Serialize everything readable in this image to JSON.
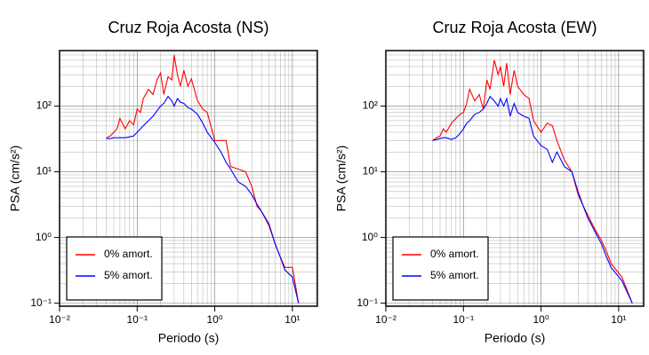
{
  "chart_data": [
    {
      "type": "line",
      "title": "Cruz Roja Acosta (NS)",
      "x_label": "Periodo (s)",
      "y_label": "PSA (cm/s²)",
      "x_scale": "log",
      "y_scale": "log",
      "grid": true,
      "minor_grid": true,
      "legend": "lower-left",
      "xlim": [
        0.01,
        21
      ],
      "ylim": [
        0.09,
        700
      ],
      "xticks": [
        {
          "value": 0.01,
          "label": "10⁻²"
        },
        {
          "value": 0.1,
          "label": "10⁻¹"
        },
        {
          "value": 1,
          "label": "10⁰"
        },
        {
          "value": 10,
          "label": "10¹"
        }
      ],
      "yticks": [
        {
          "value": 0.1,
          "label": "10⁻¹"
        },
        {
          "value": 1,
          "label": "10⁰"
        },
        {
          "value": 10,
          "label": "10¹"
        },
        {
          "value": 100,
          "label": "10²"
        }
      ],
      "x": [
        0.04,
        0.045,
        0.05,
        0.055,
        0.06,
        0.07,
        0.08,
        0.09,
        0.1,
        0.11,
        0.12,
        0.14,
        0.16,
        0.18,
        0.2,
        0.22,
        0.25,
        0.28,
        0.3,
        0.33,
        0.36,
        0.4,
        0.45,
        0.5,
        0.6,
        0.7,
        0.8,
        1,
        1.2,
        1.4,
        1.6,
        2,
        2.5,
        3,
        3.5,
        4,
        5,
        6,
        7,
        8,
        10,
        12
      ],
      "series": [
        {
          "name": "0% amort.",
          "color": "#ff0000",
          "values": [
            33,
            35,
            40,
            45,
            65,
            45,
            60,
            52,
            90,
            80,
            130,
            180,
            150,
            250,
            320,
            150,
            280,
            250,
            600,
            300,
            200,
            350,
            200,
            260,
            120,
            90,
            80,
            30,
            30,
            30,
            12,
            11,
            10,
            6,
            3,
            2.5,
            1.5,
            0.8,
            0.5,
            0.35,
            0.35,
            0.1
          ]
        },
        {
          "name": "5% amort.",
          "color": "#0000ff",
          "values": [
            32,
            32,
            33,
            33,
            33,
            33,
            34,
            35,
            40,
            45,
            50,
            60,
            70,
            85,
            100,
            110,
            140,
            120,
            100,
            130,
            115,
            110,
            95,
            90,
            75,
            55,
            40,
            28,
            20,
            14,
            11,
            7,
            6,
            4.5,
            3.2,
            2.5,
            1.6,
            0.8,
            0.5,
            0.32,
            0.25,
            0.1
          ]
        }
      ]
    },
    {
      "type": "line",
      "title": "Cruz Roja Acosta (EW)",
      "x_label": "Periodo (s)",
      "y_label": "PSA (cm/s²)",
      "x_scale": "log",
      "y_scale": "log",
      "grid": true,
      "minor_grid": true,
      "legend": "lower-left",
      "xlim": [
        0.01,
        21
      ],
      "ylim": [
        0.09,
        700
      ],
      "xticks": [
        {
          "value": 0.01,
          "label": "10⁻²"
        },
        {
          "value": 0.1,
          "label": "10⁻¹"
        },
        {
          "value": 1,
          "label": "10⁰"
        },
        {
          "value": 10,
          "label": "10¹"
        }
      ],
      "yticks": [
        {
          "value": 0.1,
          "label": "10⁻¹"
        },
        {
          "value": 1,
          "label": "10⁰"
        },
        {
          "value": 10,
          "label": "10¹"
        },
        {
          "value": 100,
          "label": "10²"
        }
      ],
      "x": [
        0.04,
        0.045,
        0.05,
        0.055,
        0.06,
        0.07,
        0.08,
        0.09,
        0.1,
        0.11,
        0.12,
        0.14,
        0.16,
        0.18,
        0.2,
        0.22,
        0.25,
        0.28,
        0.3,
        0.33,
        0.36,
        0.4,
        0.45,
        0.5,
        0.6,
        0.7,
        0.8,
        1,
        1.2,
        1.4,
        1.6,
        2,
        2.5,
        3,
        3.5,
        4,
        5,
        6,
        7,
        8,
        11,
        15
      ],
      "series": [
        {
          "name": "0% amort.",
          "color": "#ff0000",
          "values": [
            30,
            33,
            35,
            45,
            40,
            55,
            65,
            75,
            80,
            110,
            180,
            120,
            150,
            90,
            250,
            180,
            500,
            300,
            400,
            200,
            450,
            150,
            350,
            200,
            150,
            130,
            60,
            40,
            55,
            50,
            30,
            15,
            10,
            4.5,
            3,
            2.2,
            1.3,
            0.9,
            0.6,
            0.4,
            0.25,
            0.1
          ]
        },
        {
          "name": "5% amort.",
          "color": "#0000ff",
          "values": [
            30,
            31,
            32,
            33,
            33,
            31,
            33,
            38,
            45,
            55,
            60,
            75,
            80,
            90,
            110,
            140,
            120,
            100,
            130,
            100,
            130,
            70,
            110,
            80,
            70,
            65,
            35,
            25,
            22,
            14,
            20,
            12,
            10,
            5,
            3,
            2,
            1.2,
            0.8,
            0.5,
            0.35,
            0.22,
            0.1
          ]
        }
      ]
    }
  ]
}
